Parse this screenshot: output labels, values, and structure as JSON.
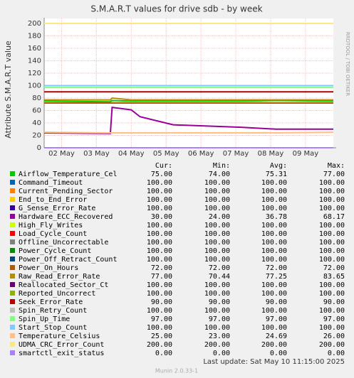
{
  "chart_data": {
    "type": "line",
    "title": "S.M.A.R.T values for drive sdb - by week",
    "y_label": "Attribute S.M.A.R.T value",
    "side_text": "RRDTOOL / TOBI OETIKER",
    "grid": true,
    "x": [
      1.5,
      3.4,
      3.45,
      4.0,
      4.25,
      5.2,
      7.15,
      8.15,
      9.8
    ],
    "xlim": [
      1.5,
      9.8
    ],
    "xticks": [
      {
        "value": 2,
        "label": "02 May"
      },
      {
        "value": 3,
        "label": "03 May"
      },
      {
        "value": 4,
        "label": "04 May"
      },
      {
        "value": 5,
        "label": "05 May"
      },
      {
        "value": 6,
        "label": "06 May"
      },
      {
        "value": 7,
        "label": "07 May"
      },
      {
        "value": 8,
        "label": "08 May"
      },
      {
        "value": 9,
        "label": "09 May"
      }
    ],
    "ylim": [
      0,
      200
    ],
    "yticks": [
      0,
      20,
      40,
      60,
      80,
      100,
      120,
      140,
      160,
      180,
      200
    ],
    "series": [
      {
        "name": "Airflow_Temperature_Cel",
        "color": "#00cc00",
        "values": [
          75,
          74,
          76,
          75,
          75,
          75,
          75,
          76,
          75
        ]
      },
      {
        "name": "Command_Timeout",
        "color": "#0066b3",
        "values": [
          100,
          100,
          100,
          100,
          100,
          100,
          100,
          100,
          100
        ]
      },
      {
        "name": "Current_Pending_Sector",
        "color": "#ff8000",
        "values": [
          100,
          100,
          100,
          100,
          100,
          100,
          100,
          100,
          100
        ]
      },
      {
        "name": "End_to_End_Error",
        "color": "#ffcc00",
        "values": [
          100,
          100,
          100,
          100,
          100,
          100,
          100,
          100,
          100
        ]
      },
      {
        "name": "G_Sense_Error_Rate",
        "color": "#330099",
        "values": [
          100,
          100,
          100,
          100,
          100,
          100,
          100,
          100,
          100
        ]
      },
      {
        "name": "Hardware_ECC_Recovered",
        "color": "#990099",
        "values": [
          24,
          23,
          65,
          61,
          50,
          37,
          33,
          30,
          30
        ]
      },
      {
        "name": "High_Fly_Writes",
        "color": "#ccff00",
        "values": [
          100,
          100,
          100,
          100,
          100,
          100,
          100,
          100,
          100
        ]
      },
      {
        "name": "Load_Cycle_Count",
        "color": "#ff0000",
        "values": [
          100,
          100,
          100,
          100,
          100,
          100,
          100,
          100,
          100
        ]
      },
      {
        "name": "Offline_Uncorrectable",
        "color": "#808080",
        "values": [
          100,
          100,
          100,
          100,
          100,
          100,
          100,
          100,
          100
        ]
      },
      {
        "name": "Power_Cycle_Count",
        "color": "#008f00",
        "values": [
          100,
          100,
          100,
          100,
          100,
          100,
          100,
          100,
          100
        ]
      },
      {
        "name": "Power_Off_Retract_Count",
        "color": "#00487d",
        "values": [
          100,
          100,
          100,
          100,
          100,
          100,
          100,
          100,
          100
        ]
      },
      {
        "name": "Power_On_Hours",
        "color": "#b35a00",
        "values": [
          72,
          72,
          72,
          72,
          72,
          72,
          72,
          72,
          72
        ]
      },
      {
        "name": "Raw_Read_Error_Rate",
        "color": "#b38f00",
        "values": [
          77,
          77,
          80,
          77,
          77,
          77,
          77,
          77,
          77
        ]
      },
      {
        "name": "Reallocated_Sector_Ct",
        "color": "#6b006b",
        "values": [
          100,
          100,
          100,
          100,
          100,
          100,
          100,
          100,
          100
        ]
      },
      {
        "name": "Reported_Uncorrect",
        "color": "#8fb300",
        "values": [
          100,
          100,
          100,
          100,
          100,
          100,
          100,
          100,
          100
        ]
      },
      {
        "name": "Seek_Error_Rate",
        "color": "#b30000",
        "values": [
          90,
          90,
          90,
          90,
          90,
          90,
          90,
          90,
          90
        ]
      },
      {
        "name": "Spin_Retry_Count",
        "color": "#bebebe",
        "values": [
          100,
          100,
          100,
          100,
          100,
          100,
          100,
          100,
          100
        ]
      },
      {
        "name": "Spin_Up_Time",
        "color": "#80ff80",
        "values": [
          97,
          97,
          97,
          97,
          97,
          97,
          97,
          97,
          97
        ]
      },
      {
        "name": "Start_Stop_Count",
        "color": "#80c9ff",
        "values": [
          100,
          100,
          100,
          100,
          100,
          100,
          100,
          100,
          100
        ]
      },
      {
        "name": "Temperature_Celsius",
        "color": "#ffc080",
        "values": [
          25,
          24,
          24,
          24,
          24,
          24,
          24,
          24,
          25
        ]
      },
      {
        "name": "UDMA_CRC_Error_Count",
        "color": "#ffe680",
        "values": [
          200,
          200,
          200,
          200,
          200,
          200,
          200,
          200,
          200
        ]
      },
      {
        "name": "smartctl_exit_status",
        "color": "#aa80ff",
        "values": [
          0,
          0,
          0,
          0,
          0,
          0,
          0,
          0,
          0
        ]
      }
    ],
    "legend": {
      "headers": [
        "Cur:",
        "Min:",
        "Avg:",
        "Max:"
      ],
      "rows": [
        [
          "75.00",
          "74.00",
          "75.31",
          "77.00"
        ],
        [
          "100.00",
          "100.00",
          "100.00",
          "100.00"
        ],
        [
          "100.00",
          "100.00",
          "100.00",
          "100.00"
        ],
        [
          "100.00",
          "100.00",
          "100.00",
          "100.00"
        ],
        [
          "100.00",
          "100.00",
          "100.00",
          "100.00"
        ],
        [
          "30.00",
          "24.00",
          "36.78",
          "68.17"
        ],
        [
          "100.00",
          "100.00",
          "100.00",
          "100.00"
        ],
        [
          "100.00",
          "100.00",
          "100.00",
          "100.00"
        ],
        [
          "100.00",
          "100.00",
          "100.00",
          "100.00"
        ],
        [
          "100.00",
          "100.00",
          "100.00",
          "100.00"
        ],
        [
          "100.00",
          "100.00",
          "100.00",
          "100.00"
        ],
        [
          "72.00",
          "72.00",
          "72.00",
          "72.00"
        ],
        [
          "77.00",
          "70.44",
          "77.25",
          "83.65"
        ],
        [
          "100.00",
          "100.00",
          "100.00",
          "100.00"
        ],
        [
          "100.00",
          "100.00",
          "100.00",
          "100.00"
        ],
        [
          "90.00",
          "90.00",
          "90.00",
          "90.00"
        ],
        [
          "100.00",
          "100.00",
          "100.00",
          "100.00"
        ],
        [
          "97.00",
          "97.00",
          "97.00",
          "97.00"
        ],
        [
          "100.00",
          "100.00",
          "100.00",
          "100.00"
        ],
        [
          "25.00",
          "23.00",
          "24.69",
          "26.00"
        ],
        [
          "200.00",
          "200.00",
          "200.00",
          "200.00"
        ],
        [
          "0.00",
          "0.00",
          "0.00",
          "0.00"
        ]
      ]
    },
    "last_update": "Last update:  Sat May 10 11:15:00 2025",
    "footer": "Munin 2.0.33-1"
  }
}
